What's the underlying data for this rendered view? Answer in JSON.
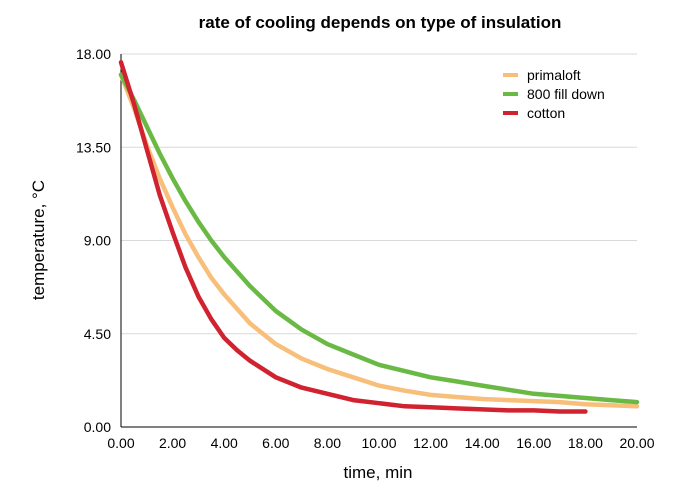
{
  "chart_data": {
    "type": "line",
    "title": "rate of cooling depends on type of insulation",
    "xlabel": "time, min",
    "ylabel": "temperature, °C",
    "xlim": [
      0,
      20
    ],
    "ylim": [
      0,
      18
    ],
    "x_ticks": [
      "0.00",
      "2.00",
      "4.00",
      "6.00",
      "8.00",
      "10.00",
      "12.00",
      "14.00",
      "16.00",
      "18.00",
      "20.00"
    ],
    "y_ticks": [
      "0.00",
      "4.50",
      "9.00",
      "13.50",
      "18.00"
    ],
    "grid": "horizontal",
    "legend_position": "top-right",
    "series": [
      {
        "name": "primaloft",
        "color": "#f7bf7a",
        "x": [
          0,
          0.5,
          1,
          1.5,
          2,
          2.5,
          3,
          3.5,
          4,
          5,
          6,
          7,
          8,
          9,
          10,
          11,
          12,
          13,
          14,
          15,
          16,
          17,
          18,
          19,
          20
        ],
        "y": [
          17.0,
          15.4,
          13.6,
          12.0,
          10.6,
          9.3,
          8.2,
          7.2,
          6.4,
          5.0,
          4.0,
          3.3,
          2.8,
          2.4,
          2.0,
          1.75,
          1.55,
          1.45,
          1.35,
          1.3,
          1.25,
          1.2,
          1.1,
          1.05,
          1.0
        ]
      },
      {
        "name": "800 fill down",
        "color": "#6ab945",
        "x": [
          0,
          0.5,
          1,
          1.5,
          2,
          2.5,
          3,
          3.5,
          4,
          5,
          6,
          7,
          8,
          9,
          10,
          11,
          12,
          13,
          14,
          15,
          16,
          17,
          18,
          19,
          20
        ],
        "y": [
          17.0,
          15.8,
          14.5,
          13.2,
          12.0,
          10.9,
          9.9,
          9.0,
          8.2,
          6.8,
          5.6,
          4.7,
          4.0,
          3.5,
          3.0,
          2.7,
          2.4,
          2.2,
          2.0,
          1.8,
          1.6,
          1.5,
          1.4,
          1.3,
          1.2
        ]
      },
      {
        "name": "cotton",
        "color": "#d0222f",
        "x": [
          0,
          0.5,
          1,
          1.5,
          2,
          2.5,
          3,
          3.5,
          4,
          4.5,
          5,
          6,
          7,
          8,
          9,
          10,
          11,
          12,
          13,
          14,
          15,
          16,
          17,
          18
        ],
        "y": [
          17.6,
          15.6,
          13.4,
          11.2,
          9.4,
          7.7,
          6.3,
          5.2,
          4.3,
          3.7,
          3.2,
          2.4,
          1.9,
          1.6,
          1.3,
          1.15,
          1.0,
          0.95,
          0.9,
          0.85,
          0.8,
          0.8,
          0.75,
          0.75
        ]
      }
    ]
  }
}
